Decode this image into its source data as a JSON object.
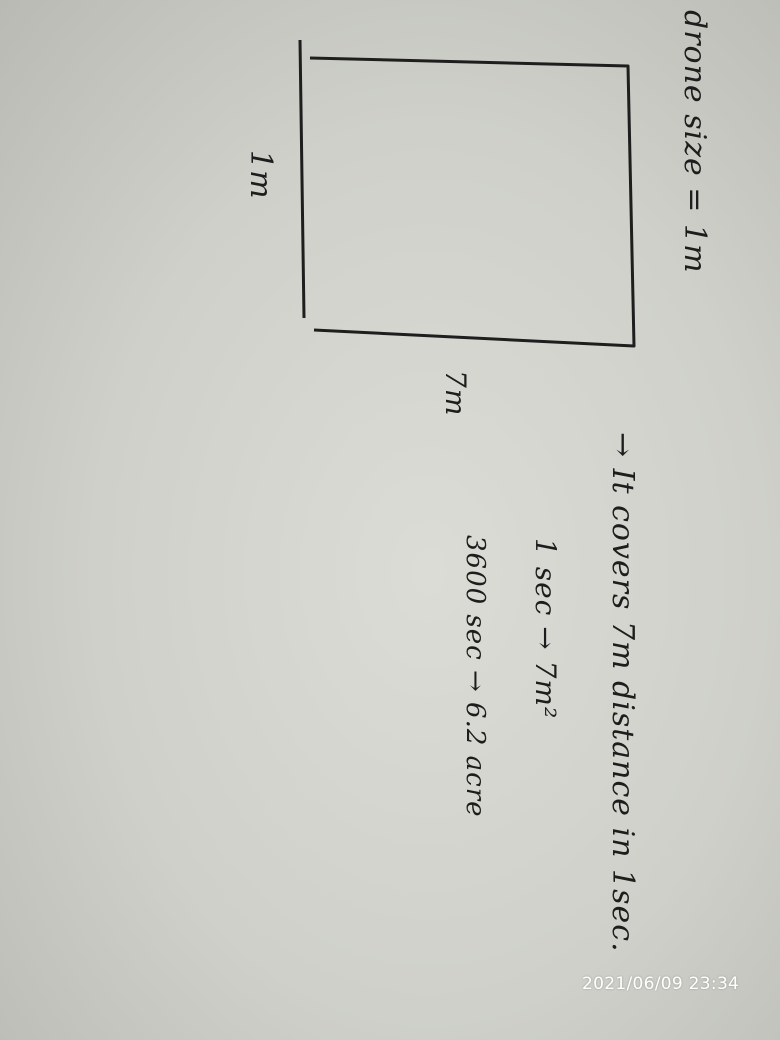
{
  "notes": {
    "drone_size": "drone size = 1m",
    "side_label": "1m",
    "width_label": "7m",
    "coverage": "→ It covers  7m  distance in  1sec.",
    "per_second": "1 sec  →  7m²",
    "per_hour": "3600 sec  →  6.2 acre"
  },
  "timestamp": "2021/06/09 23:34"
}
